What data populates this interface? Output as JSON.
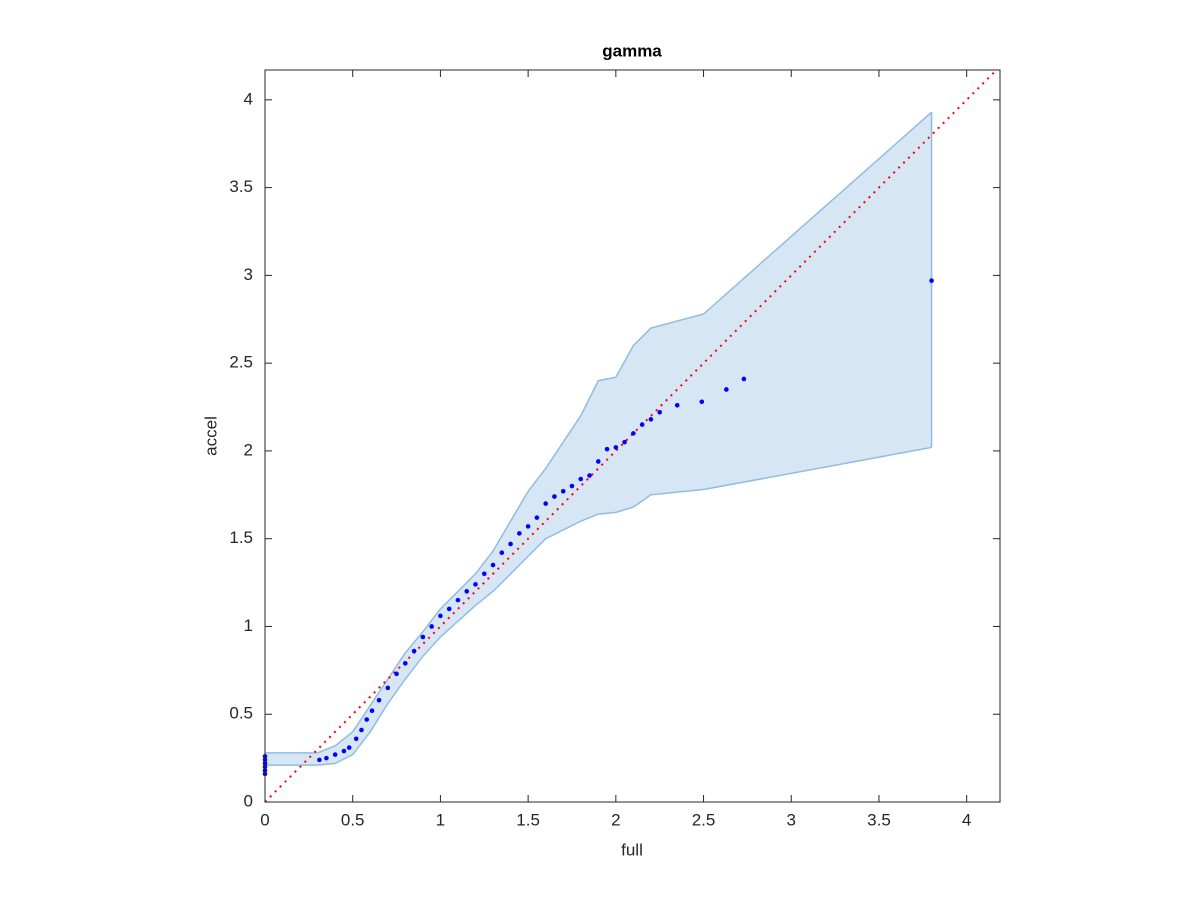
{
  "chart_data": {
    "type": "scatter",
    "title": "gamma",
    "x_label": "full",
    "y_label": "accel",
    "xlim": [
      0,
      4.19
    ],
    "ylim": [
      0,
      4.17
    ],
    "xticks": [
      0,
      0.5,
      1,
      1.5,
      2,
      2.5,
      3,
      3.5,
      4
    ],
    "yticks": [
      0,
      0.5,
      1,
      1.5,
      2,
      2.5,
      3,
      3.5,
      4
    ],
    "grid": false,
    "band": {
      "color": "#d6e6f4",
      "edge_color": "#8fbde0",
      "x": [
        0,
        0.3,
        0.4,
        0.5,
        0.6,
        0.7,
        0.8,
        0.9,
        1.0,
        1.1,
        1.2,
        1.3,
        1.4,
        1.5,
        1.6,
        1.7,
        1.8,
        1.9,
        2.0,
        2.1,
        2.2,
        2.5,
        3.8
      ],
      "upper": [
        0.28,
        0.28,
        0.32,
        0.4,
        0.55,
        0.7,
        0.85,
        0.97,
        1.1,
        1.2,
        1.3,
        1.43,
        1.6,
        1.77,
        1.9,
        2.05,
        2.2,
        2.4,
        2.42,
        2.6,
        2.7,
        2.78,
        3.93
      ],
      "lower": [
        0.21,
        0.21,
        0.22,
        0.27,
        0.4,
        0.56,
        0.7,
        0.83,
        0.94,
        1.03,
        1.12,
        1.2,
        1.3,
        1.4,
        1.5,
        1.55,
        1.6,
        1.64,
        1.65,
        1.68,
        1.75,
        1.78,
        2.02
      ]
    },
    "points": {
      "color": "#0000ff",
      "x": [
        0,
        0,
        0,
        0,
        0,
        0,
        0.31,
        0.35,
        0.4,
        0.45,
        0.48,
        0.52,
        0.55,
        0.58,
        0.61,
        0.65,
        0.7,
        0.75,
        0.8,
        0.85,
        0.9,
        0.95,
        1.0,
        1.05,
        1.1,
        1.15,
        1.2,
        1.25,
        1.3,
        1.35,
        1.4,
        1.45,
        1.5,
        1.55,
        1.6,
        1.65,
        1.7,
        1.75,
        1.8,
        1.85,
        1.9,
        1.95,
        2.0,
        2.05,
        2.1,
        2.15,
        2.2,
        2.25,
        2.35,
        2.49,
        2.63,
        2.73,
        3.8
      ],
      "y": [
        0.16,
        0.18,
        0.2,
        0.22,
        0.24,
        0.26,
        0.24,
        0.25,
        0.27,
        0.29,
        0.31,
        0.36,
        0.41,
        0.47,
        0.52,
        0.58,
        0.65,
        0.73,
        0.79,
        0.86,
        0.94,
        1.0,
        1.06,
        1.1,
        1.15,
        1.2,
        1.24,
        1.3,
        1.35,
        1.42,
        1.47,
        1.53,
        1.57,
        1.62,
        1.7,
        1.74,
        1.77,
        1.8,
        1.84,
        1.86,
        1.94,
        2.01,
        2.02,
        2.05,
        2.1,
        2.15,
        2.18,
        2.22,
        2.26,
        2.28,
        2.35,
        2.41,
        2.97
      ]
    },
    "reference_line": {
      "slope": 1,
      "intercept": 0,
      "color": "#ff0000",
      "style": "dotted"
    }
  }
}
